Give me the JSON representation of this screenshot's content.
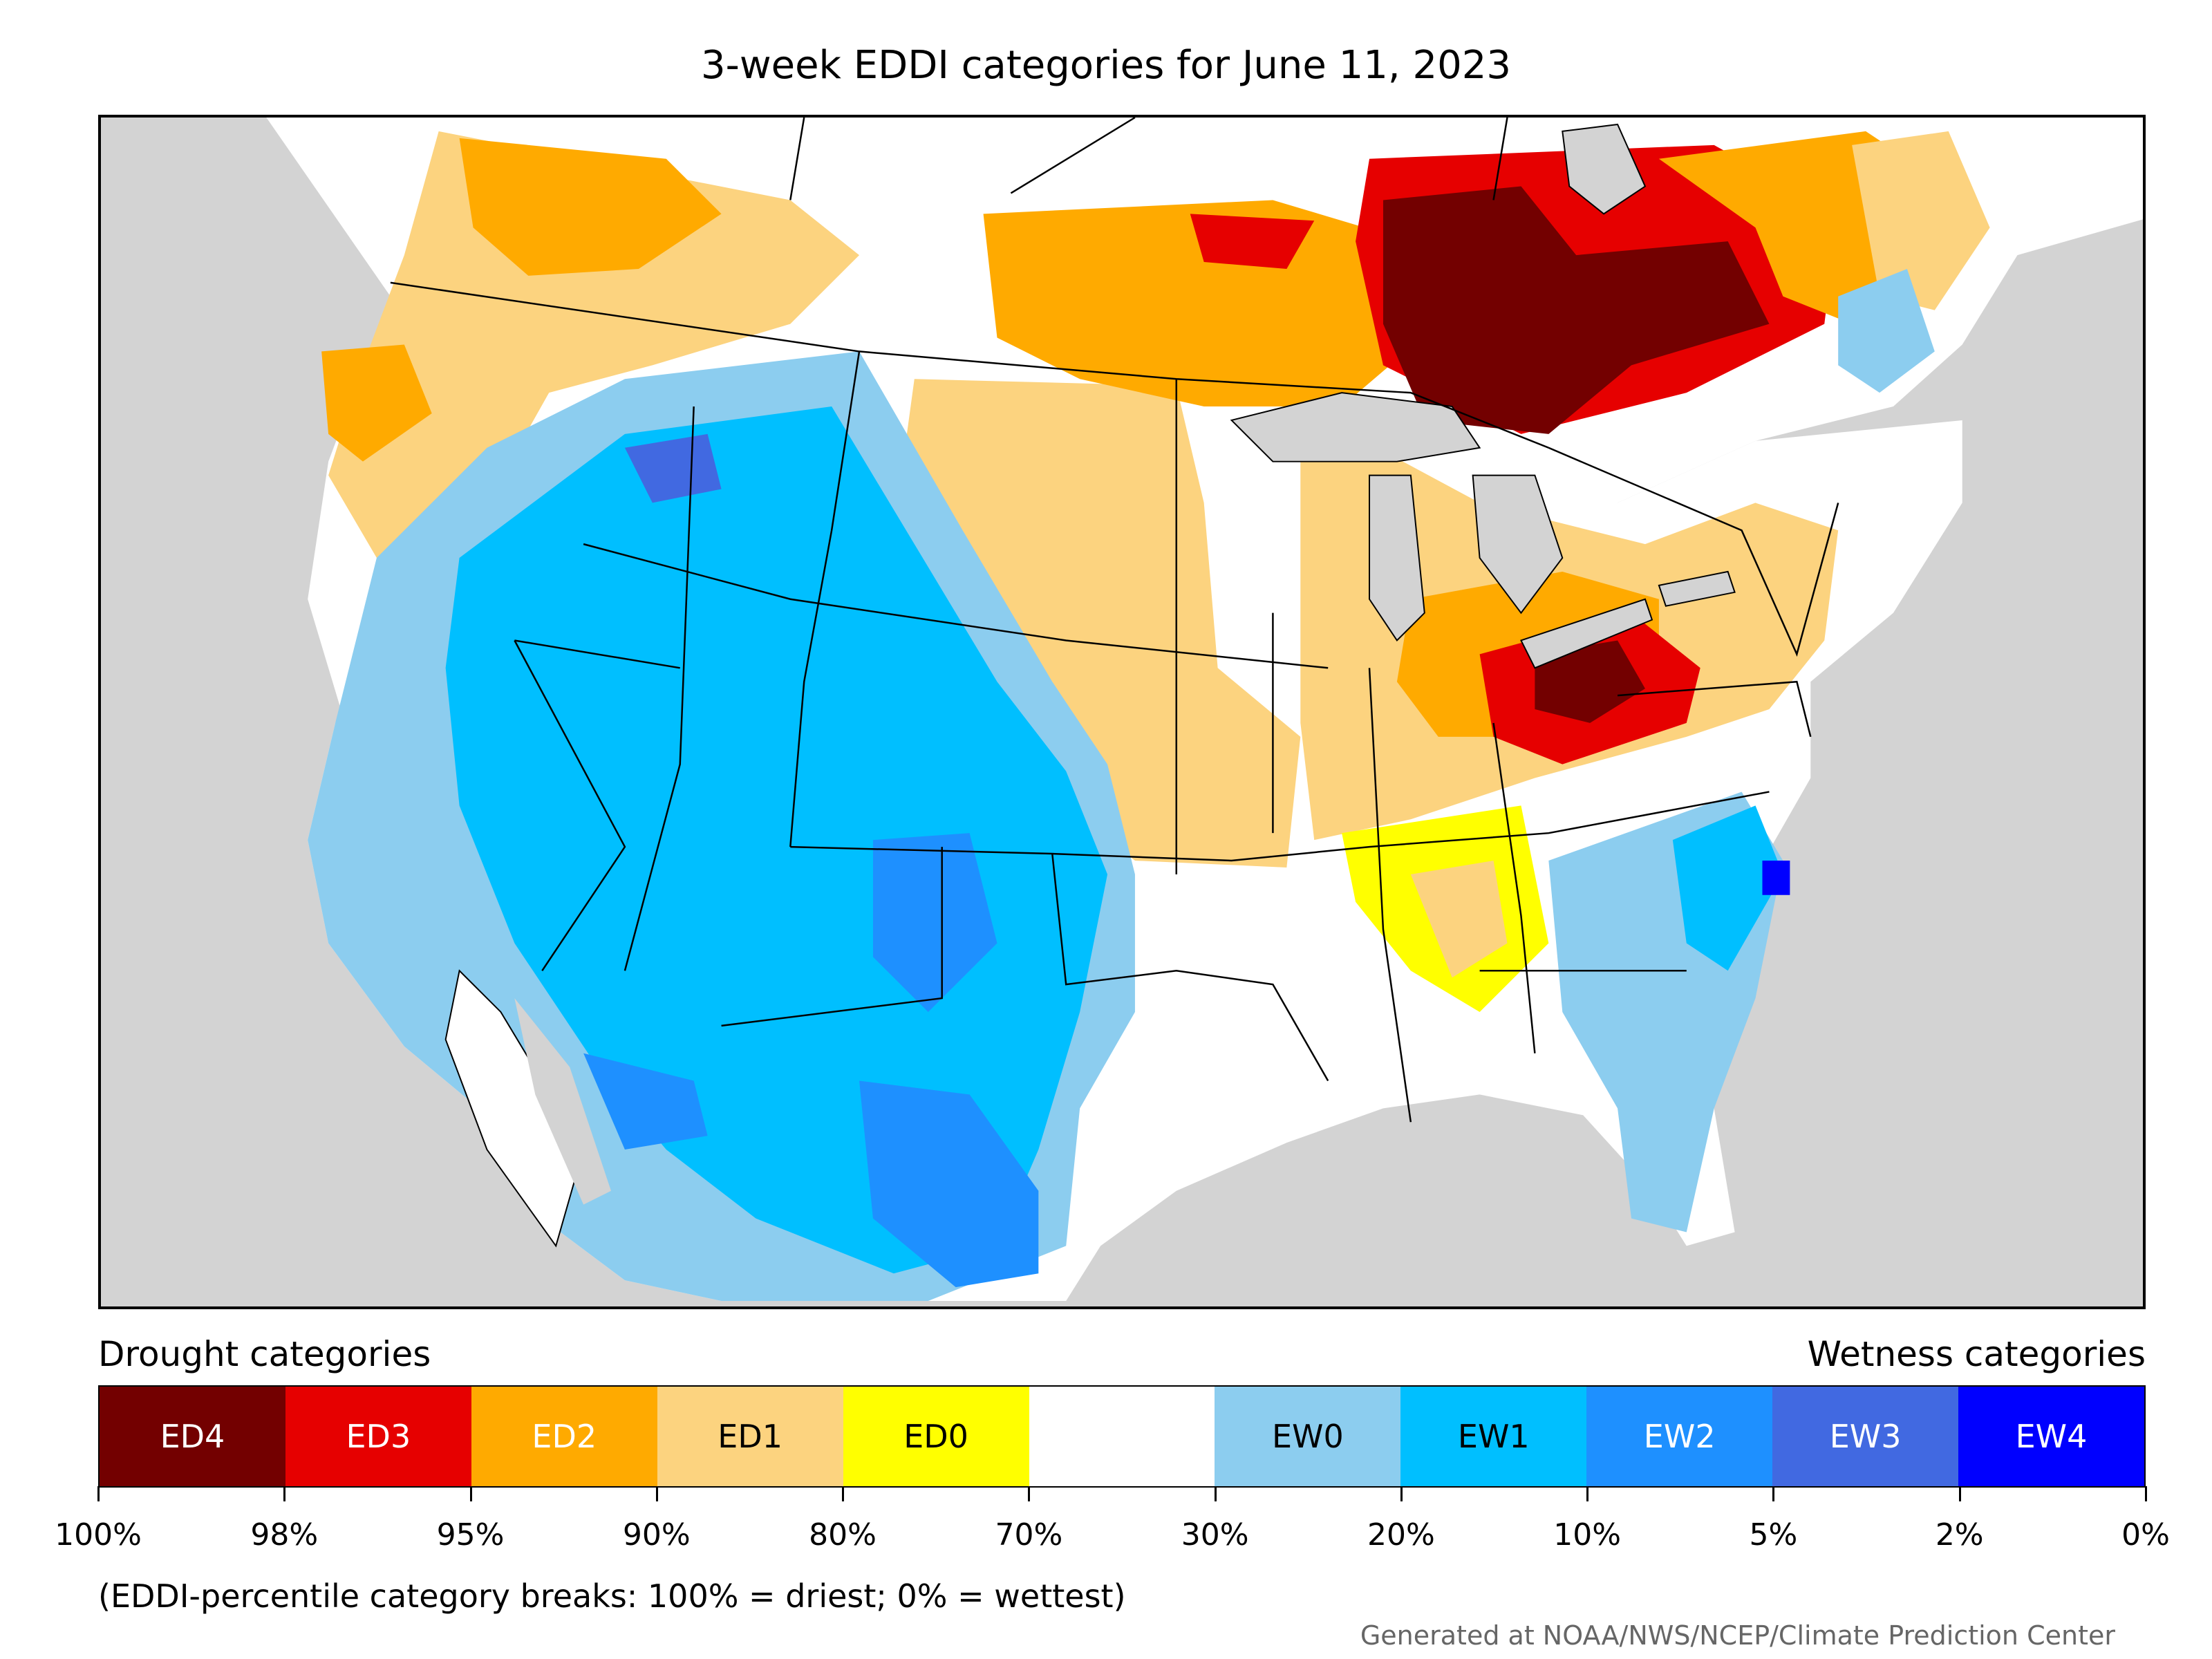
{
  "title": "3-week EDDI categories for June 11, 2023",
  "legend": {
    "drought_label": "Drought categories",
    "wetness_label": "Wetness categories",
    "categories": [
      {
        "label": "ED4",
        "color": "#730000",
        "text_color": "#ffffff"
      },
      {
        "label": "ED3",
        "color": "#e60000",
        "text_color": "#ffffff"
      },
      {
        "label": "ED2",
        "color": "#ffaa00",
        "text_color": "#ffffff"
      },
      {
        "label": "ED1",
        "color": "#fcd37f",
        "text_color": "#000000"
      },
      {
        "label": "ED0",
        "color": "#ffff00",
        "text_color": "#000000"
      },
      {
        "label": "",
        "color": "#ffffff",
        "text_color": "#000000"
      },
      {
        "label": "EW0",
        "color": "#8ccdef",
        "text_color": "#000000"
      },
      {
        "label": "EW1",
        "color": "#00bfff",
        "text_color": "#000000"
      },
      {
        "label": "EW2",
        "color": "#1e90ff",
        "text_color": "#ffffff"
      },
      {
        "label": "EW3",
        "color": "#4169e1",
        "text_color": "#ffffff"
      },
      {
        "label": "EW4",
        "color": "#0000ff",
        "text_color": "#ffffff"
      }
    ],
    "breaks": [
      "100%",
      "98%",
      "95%",
      "90%",
      "80%",
      "70%",
      "30%",
      "20%",
      "10%",
      "5%",
      "2%",
      "0%"
    ]
  },
  "note": "(EDDI-percentile category breaks: 100% = driest; 0% = wettest)",
  "credit": "Generated at NOAA/NWS/NCEP/Climate Prediction Center"
}
